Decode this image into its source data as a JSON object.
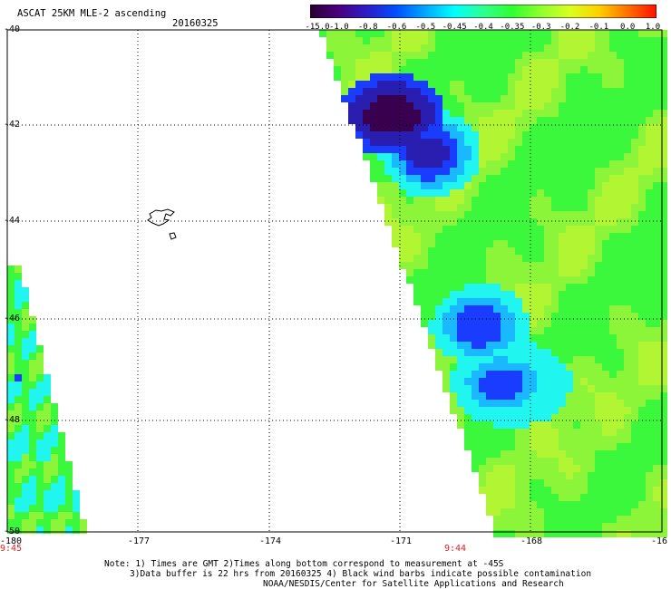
{
  "header": {
    "title": "ASCAT 25KM MLE-2 ascending",
    "date": "20160325"
  },
  "colorbar": {
    "labels": [
      "-15.0",
      "-1.0",
      "-0.8",
      "-0.6",
      "-0.5",
      "-0.45",
      "-0.4",
      "-0.35",
      "-0.3",
      "-0.2",
      "-0.1",
      "0.0",
      "1.0"
    ],
    "colors": [
      "#2a0033",
      "#4a0080",
      "#2a1ec8",
      "#0050ff",
      "#00a8ff",
      "#00ffff",
      "#30ff90",
      "#30ff30",
      "#90ff30",
      "#d8ff20",
      "#ffd000",
      "#ff7000",
      "#ff1000"
    ]
  },
  "axes": {
    "x_ticks": [
      "-180",
      "-177",
      "-174",
      "-171",
      "-168",
      "-16"
    ],
    "y_ticks": [
      "-40",
      "-42",
      "-44",
      "-46",
      "-48",
      "-50"
    ]
  },
  "times": {
    "left": "9:45",
    "right": "9:44"
  },
  "notes": {
    "line1": "Note: 1) Times are GMT 2)Times along bottom correspond to measurement at -45S",
    "line2": "3)Data buffer is 22 hrs from 20160325 4) Black wind barbs indicate possible contamination",
    "line3": "NOAA/NESDIS/Center for Satellite Applications and Research"
  },
  "palette": {
    "dark_purple": "#3a0050",
    "purple": "#2a1eb0",
    "blue": "#1a3cff",
    "lightblue": "#19b8ff",
    "cyan": "#20f5f0",
    "green": "#3cf83c",
    "lightgreen": "#8cf53a",
    "yellowgreen": "#b2f532"
  }
}
